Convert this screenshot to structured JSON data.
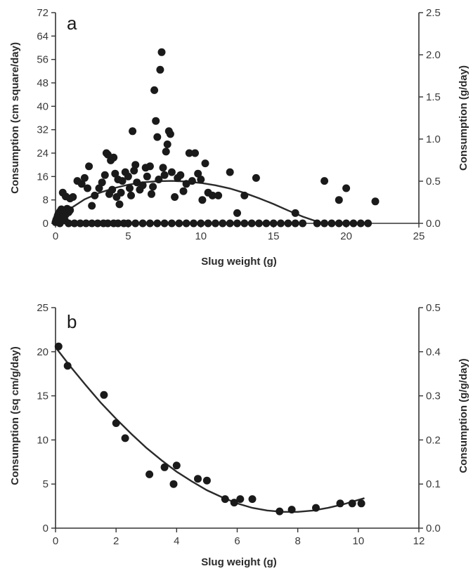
{
  "chart_data": [
    {
      "type": "scatter",
      "panel_label": "a",
      "xlabel": "Slug weight (g)",
      "ylabel": "Consumption (cm square/day)",
      "y2label": "Consumption (g/day)",
      "xlim": [
        0,
        25
      ],
      "ylim": [
        0,
        72
      ],
      "y2lim": [
        0,
        2.5
      ],
      "xticks": [
        "0",
        "5",
        "10",
        "15",
        "20",
        "25"
      ],
      "yticks": [
        "0",
        "8",
        "16",
        "24",
        "32",
        "40",
        "48",
        "56",
        "64",
        "72"
      ],
      "y2ticks": [
        "0.0",
        "0.5",
        "1.0",
        "1.5",
        "2.0",
        "2.5"
      ],
      "grid": false,
      "marker_color": "#1a1a1a",
      "fit_color": "#2a2a2a",
      "fit_curve": {
        "x": [
          0,
          1,
          2,
          3,
          4,
          5,
          6,
          7,
          8,
          9,
          10,
          11,
          12,
          13,
          14,
          15,
          16,
          17,
          18,
          18.5
        ],
        "y": [
          0.5,
          5.0,
          8.2,
          10.4,
          12.0,
          13.2,
          14.0,
          14.4,
          14.5,
          14.3,
          13.8,
          13.0,
          11.9,
          10.4,
          8.6,
          6.6,
          4.4,
          2.3,
          0.6,
          0
        ]
      },
      "points": [
        [
          0.0,
          0.4
        ],
        [
          0.05,
          1.2
        ],
        [
          0.1,
          1.8
        ],
        [
          0.15,
          2.6
        ],
        [
          0.2,
          3.2
        ],
        [
          0.25,
          0.5
        ],
        [
          0.3,
          4.0
        ],
        [
          0.35,
          2.0
        ],
        [
          0.4,
          4.8
        ],
        [
          0.45,
          1.5
        ],
        [
          0.5,
          3.6
        ],
        [
          0.55,
          2.8
        ],
        [
          0.6,
          4.4
        ],
        [
          0.65,
          1.0
        ],
        [
          0.7,
          3.0
        ],
        [
          0.8,
          5.0
        ],
        [
          0.9,
          3.8
        ],
        [
          1.0,
          4.5
        ],
        [
          0.5,
          10.5
        ],
        [
          0.7,
          9.2
        ],
        [
          1.0,
          8.5
        ],
        [
          1.2,
          9.0
        ],
        [
          1.5,
          14.5
        ],
        [
          1.8,
          13.5
        ],
        [
          2.0,
          15.5
        ],
        [
          2.2,
          12.0
        ],
        [
          2.3,
          19.5
        ],
        [
          2.5,
          6.0
        ],
        [
          2.7,
          9.5
        ],
        [
          3.0,
          12.0
        ],
        [
          3.2,
          14.0
        ],
        [
          3.4,
          16.5
        ],
        [
          3.5,
          24.0
        ],
        [
          3.6,
          23.5
        ],
        [
          3.8,
          21.5
        ],
        [
          3.7,
          10.0
        ],
        [
          3.9,
          11.5
        ],
        [
          4.0,
          22.5
        ],
        [
          4.1,
          17.0
        ],
        [
          4.2,
          9.0
        ],
        [
          4.3,
          15.0
        ],
        [
          4.4,
          6.5
        ],
        [
          4.5,
          10.5
        ],
        [
          4.6,
          14.5
        ],
        [
          4.8,
          17.5
        ],
        [
          5.0,
          16.0
        ],
        [
          5.1,
          12.0
        ],
        [
          5.2,
          9.5
        ],
        [
          5.3,
          31.5
        ],
        [
          5.4,
          18.0
        ],
        [
          5.5,
          20.0
        ],
        [
          5.6,
          14.0
        ],
        [
          5.8,
          11.5
        ],
        [
          6.0,
          13.0
        ],
        [
          6.2,
          19.0
        ],
        [
          6.3,
          16.0
        ],
        [
          6.5,
          19.5
        ],
        [
          6.6,
          10.0
        ],
        [
          6.7,
          12.5
        ],
        [
          6.8,
          45.5
        ],
        [
          6.9,
          35.0
        ],
        [
          7.0,
          29.5
        ],
        [
          7.1,
          15.0
        ],
        [
          7.2,
          52.5
        ],
        [
          7.3,
          58.5
        ],
        [
          7.4,
          19.0
        ],
        [
          7.5,
          16.5
        ],
        [
          7.6,
          24.5
        ],
        [
          7.7,
          27.0
        ],
        [
          7.8,
          31.5
        ],
        [
          7.9,
          30.5
        ],
        [
          8.0,
          17.5
        ],
        [
          8.2,
          9.0
        ],
        [
          8.4,
          15.5
        ],
        [
          8.6,
          16.5
        ],
        [
          8.8,
          11.0
        ],
        [
          9.0,
          13.5
        ],
        [
          9.2,
          24.0
        ],
        [
          9.4,
          14.5
        ],
        [
          9.6,
          24.0
        ],
        [
          9.8,
          17.0
        ],
        [
          10.0,
          15.0
        ],
        [
          10.1,
          8.0
        ],
        [
          10.3,
          20.5
        ],
        [
          10.5,
          10.5
        ],
        [
          10.8,
          9.5
        ],
        [
          11.2,
          9.5
        ],
        [
          12.0,
          17.5
        ],
        [
          12.5,
          3.5
        ],
        [
          13.0,
          9.5
        ],
        [
          13.8,
          15.5
        ],
        [
          16.5,
          3.5
        ],
        [
          18.5,
          14.5
        ],
        [
          19.5,
          8.0
        ],
        [
          20.0,
          12.0
        ],
        [
          22.0,
          7.5
        ],
        [
          0.3,
          0
        ],
        [
          0.9,
          0
        ],
        [
          1.3,
          0
        ],
        [
          1.7,
          0
        ],
        [
          2.1,
          0
        ],
        [
          2.5,
          0
        ],
        [
          2.9,
          0
        ],
        [
          3.3,
          0
        ],
        [
          3.6,
          0
        ],
        [
          4.0,
          0
        ],
        [
          4.3,
          0
        ],
        [
          4.7,
          0
        ],
        [
          5.0,
          0
        ],
        [
          5.5,
          0
        ],
        [
          6.0,
          0
        ],
        [
          6.5,
          0
        ],
        [
          7.0,
          0
        ],
        [
          7.5,
          0
        ],
        [
          8.0,
          0
        ],
        [
          8.5,
          0
        ],
        [
          9.0,
          0
        ],
        [
          9.5,
          0
        ],
        [
          10.0,
          0
        ],
        [
          10.5,
          0
        ],
        [
          11.0,
          0
        ],
        [
          11.5,
          0
        ],
        [
          12.0,
          0
        ],
        [
          12.5,
          0
        ],
        [
          13.0,
          0
        ],
        [
          13.5,
          0
        ],
        [
          14.0,
          0
        ],
        [
          14.5,
          0
        ],
        [
          15.0,
          0
        ],
        [
          15.5,
          0
        ],
        [
          16.0,
          0
        ],
        [
          16.5,
          0
        ],
        [
          17.0,
          0
        ],
        [
          18.0,
          0
        ],
        [
          18.5,
          0
        ],
        [
          19.0,
          0
        ],
        [
          19.5,
          0
        ],
        [
          20.0,
          0
        ],
        [
          20.5,
          0
        ],
        [
          21.0,
          0
        ],
        [
          21.5,
          0
        ]
      ]
    },
    {
      "type": "scatter",
      "panel_label": "b",
      "xlabel": "Slug weight (g)",
      "ylabel": "Consumption (sq cm/g/day)",
      "y2label": "Consumption (g/g/day)",
      "xlim": [
        0,
        12
      ],
      "ylim": [
        0,
        25
      ],
      "y2lim": [
        0,
        0.5
      ],
      "xticks": [
        "0",
        "2",
        "4",
        "6",
        "8",
        "10",
        "12"
      ],
      "yticks": [
        "0",
        "5",
        "10",
        "15",
        "20",
        "25"
      ],
      "y2ticks": [
        "0.0",
        "0.1",
        "0.2",
        "0.3",
        "0.4",
        "0.5"
      ],
      "grid": false,
      "marker_color": "#1a1a1a",
      "fit_color": "#2a2a2a",
      "fit_curve": {
        "x": [
          0,
          0.5,
          1,
          1.5,
          2,
          2.5,
          3,
          3.5,
          4,
          4.5,
          5,
          5.5,
          6,
          6.5,
          7,
          7.5,
          8,
          8.5,
          9,
          9.5,
          10,
          10.2
        ],
        "y": [
          20.5,
          18.3,
          16.2,
          14.2,
          12.4,
          10.7,
          9.1,
          7.7,
          6.4,
          5.3,
          4.3,
          3.5,
          2.8,
          2.3,
          2.0,
          1.85,
          1.85,
          2.0,
          2.3,
          2.7,
          3.2,
          3.4
        ]
      },
      "points": [
        [
          0.1,
          20.6
        ],
        [
          0.4,
          18.4
        ],
        [
          1.6,
          15.1
        ],
        [
          2.0,
          11.9
        ],
        [
          2.3,
          10.2
        ],
        [
          3.1,
          6.1
        ],
        [
          3.6,
          6.9
        ],
        [
          3.9,
          5.0
        ],
        [
          4.0,
          7.1
        ],
        [
          4.7,
          5.6
        ],
        [
          5.0,
          5.4
        ],
        [
          5.6,
          3.3
        ],
        [
          5.9,
          2.9
        ],
        [
          6.1,
          3.3
        ],
        [
          6.5,
          3.3
        ],
        [
          7.4,
          1.9
        ],
        [
          7.8,
          2.1
        ],
        [
          8.6,
          2.3
        ],
        [
          9.4,
          2.8
        ],
        [
          9.8,
          2.8
        ],
        [
          10.1,
          2.8
        ]
      ]
    }
  ]
}
